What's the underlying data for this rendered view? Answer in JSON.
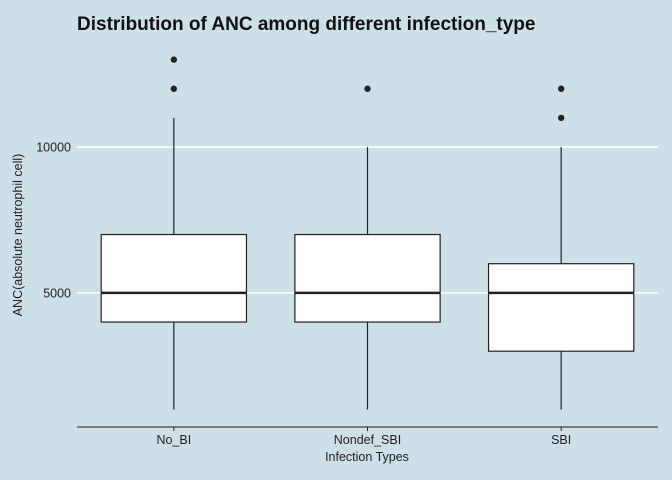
{
  "chart_data": {
    "type": "boxplot",
    "title": "Distribution of ANC among different infection_type",
    "xlabel": "Infection Types",
    "ylabel": "ANC(absolute neutrophil cell)",
    "categories": [
      "No_BI",
      "Nondef_SBI",
      "SBI"
    ],
    "ylim": [
      400,
      13500
    ],
    "yticks": [
      5000,
      10000
    ],
    "ytick_labels": [
      "5000",
      "10000"
    ],
    "grid": "horizontal major lines",
    "boxes": [
      {
        "category": "No_BI",
        "whisker_low": 1000,
        "q1": 4000,
        "median": 5000,
        "q3": 7000,
        "whisker_high": 11000,
        "outliers": [
          12000,
          13000
        ]
      },
      {
        "category": "Nondef_SBI",
        "whisker_low": 1000,
        "q1": 4000,
        "median": 5000,
        "q3": 7000,
        "whisker_high": 10000,
        "outliers": [
          12000
        ]
      },
      {
        "category": "SBI",
        "whisker_low": 1000,
        "q1": 3000,
        "median": 5000,
        "q3": 6000,
        "whisker_high": 10000,
        "outliers": [
          11000,
          12000
        ]
      }
    ],
    "colors": {
      "background": "#cddfe7",
      "box_fill": "#ffffff",
      "box_stroke": "#222222",
      "grid": "#ffffff",
      "outlier": "#222222"
    }
  }
}
